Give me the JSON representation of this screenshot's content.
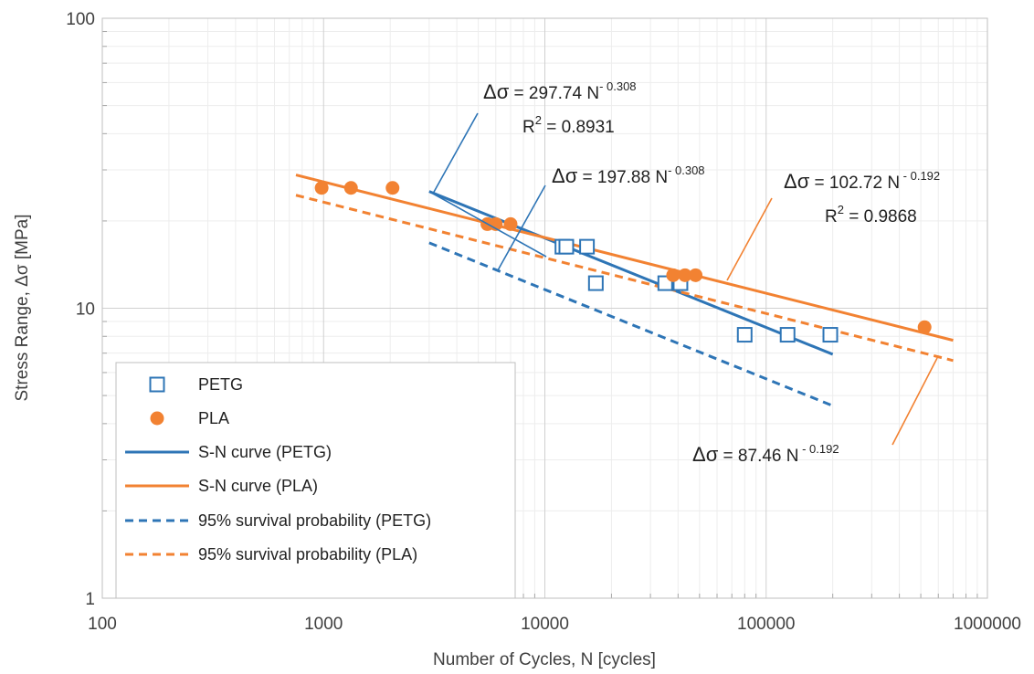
{
  "chart_data": {
    "type": "scatter",
    "x_scale": "log",
    "y_scale": "log",
    "xlabel": "Number of Cycles, N [cycles]",
    "ylabel": "Stress Range, Δσ [MPa]",
    "xlim": [
      100,
      1000000
    ],
    "ylim": [
      1,
      100
    ],
    "x_ticks": [
      "100",
      "1000",
      "10000",
      "100000",
      "1000000"
    ],
    "y_ticks": [
      "1",
      "10",
      "100"
    ],
    "grid": true,
    "legend_position": "bottom-left",
    "colors": {
      "petg": "#2E75B6",
      "pla": "#F28232"
    },
    "series": [
      {
        "name": "PETG",
        "kind": "markers",
        "marker": "square-open",
        "x": [
          12000,
          12500,
          15500,
          17000,
          35000,
          41000,
          80000,
          125000,
          195000
        ],
        "y": [
          16.3,
          16.3,
          16.3,
          12.2,
          12.2,
          12.2,
          8.1,
          8.1,
          8.1
        ]
      },
      {
        "name": "PLA",
        "kind": "markers",
        "marker": "circle-filled",
        "x": [
          980,
          1330,
          2050,
          5500,
          6000,
          7000,
          38000,
          43000,
          48000,
          520000
        ],
        "y": [
          26,
          26,
          26,
          19.5,
          19.5,
          19.5,
          13,
          13,
          13,
          8.6
        ]
      },
      {
        "name": "S-N curve (PETG)",
        "kind": "line",
        "style": "solid",
        "coefficient": 297.74,
        "exponent": -0.308,
        "x_range": [
          3000,
          200000
        ]
      },
      {
        "name": "S-N curve (PLA)",
        "kind": "line",
        "style": "solid",
        "coefficient": 102.72,
        "exponent": -0.192,
        "x_range": [
          750,
          700000
        ]
      },
      {
        "name": "95% survival probability (PETG)",
        "kind": "line",
        "style": "dashed",
        "coefficient": 197.88,
        "exponent": -0.308,
        "x_range": [
          3000,
          200000
        ]
      },
      {
        "name": "95% survival probability (PLA)",
        "kind": "line",
        "style": "dashed",
        "coefficient": 87.46,
        "exponent": -0.192,
        "x_range": [
          750,
          700000
        ]
      }
    ],
    "annotations": [
      {
        "symbol": "Δσ",
        "text": " = 297.74 N",
        "exponent": "- 0.308",
        "r2_prefix": "R",
        "r2_sup": "2",
        "r2_text": " = 0.8931"
      },
      {
        "symbol": "Δσ",
        "text": " = 197.88 N",
        "exponent": "- 0.308"
      },
      {
        "symbol": "Δσ",
        "text": " = 102.72 N",
        "exponent": " - 0.192",
        "r2_prefix": "R",
        "r2_sup": "2",
        "r2_text": " = 0.9868"
      },
      {
        "symbol": "Δσ",
        "text": " = 87.46 N",
        "exponent": " - 0.192"
      }
    ]
  }
}
